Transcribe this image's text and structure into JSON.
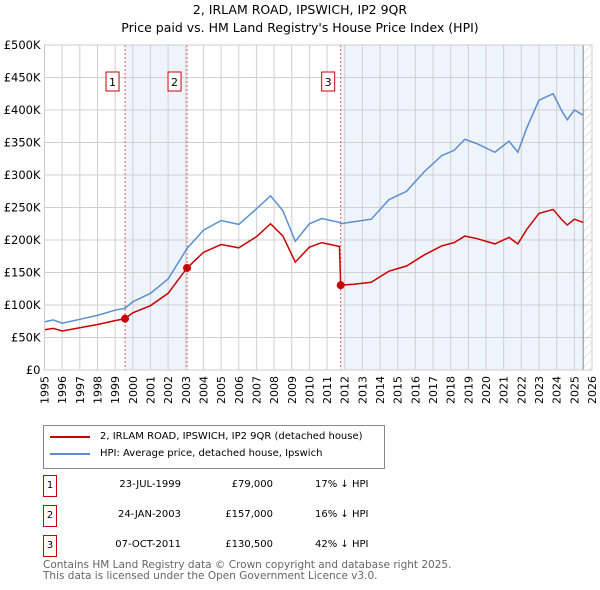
{
  "chart_data": {
    "type": "line",
    "title": "2, IRLAM ROAD, IPSWICH, IP2 9QR",
    "subtitle": "Price paid vs. HM Land Registry's House Price Index (HPI)",
    "xlim": [
      1995,
      2026
    ],
    "ylim": [
      0,
      500000
    ],
    "x_ticks": [
      "1995",
      "1996",
      "1997",
      "1998",
      "1999",
      "2000",
      "2001",
      "2002",
      "2003",
      "2004",
      "2005",
      "2006",
      "2007",
      "2008",
      "2009",
      "2010",
      "2011",
      "2012",
      "2013",
      "2014",
      "2015",
      "2016",
      "2017",
      "2018",
      "2019",
      "2020",
      "2021",
      "2022",
      "2023",
      "2024",
      "2025",
      "2026"
    ],
    "y_ticks": [
      {
        "v": 0,
        "label": "£0"
      },
      {
        "v": 50000,
        "label": "£50K"
      },
      {
        "v": 100000,
        "label": "£100K"
      },
      {
        "v": 150000,
        "label": "£150K"
      },
      {
        "v": 200000,
        "label": "£200K"
      },
      {
        "v": 250000,
        "label": "£250K"
      },
      {
        "v": 300000,
        "label": "£300K"
      },
      {
        "v": 350000,
        "label": "£350K"
      },
      {
        "v": 400000,
        "label": "£400K"
      },
      {
        "v": 450000,
        "label": "£450K"
      },
      {
        "v": 500000,
        "label": "£500K"
      }
    ],
    "grid": true,
    "series": [
      {
        "name": "2, IRLAM ROAD, IPSWICH, IP2 9QR (detached house)",
        "color": "#cc0000",
        "x": [
          1995,
          1995.5,
          1996,
          1997,
          1998,
          1999,
          1999.56,
          2000,
          2001,
          2002,
          2003.07,
          2003.5,
          2004,
          2005,
          2006,
          2007,
          2007.8,
          2008.5,
          2009.2,
          2010,
          2010.7,
          2011.7,
          2011.77,
          2012.5,
          2013.5,
          2014.5,
          2015.5,
          2016.5,
          2017.5,
          2018.2,
          2018.8,
          2019.5,
          2020.5,
          2021.3,
          2021.8,
          2022.3,
          2023,
          2023.8,
          2024.3,
          2024.6,
          2025,
          2025.5
        ],
        "y": [
          62000,
          64000,
          60000,
          65000,
          70000,
          76000,
          79000,
          88000,
          99000,
          118000,
          157000,
          168000,
          181000,
          193000,
          188000,
          205000,
          225000,
          206000,
          166000,
          189000,
          196000,
          190000,
          130500,
          132000,
          135000,
          152000,
          160000,
          177000,
          191000,
          196000,
          206000,
          202000,
          194000,
          204000,
          194000,
          216000,
          241000,
          247000,
          231000,
          223000,
          232000,
          227000
        ]
      },
      {
        "name": "HPI: Average price, detached house, Ipswich",
        "color": "#5b8fd1",
        "x": [
          1995,
          1995.5,
          1996,
          1997,
          1998,
          1999,
          1999.56,
          2000,
          2001,
          2002,
          2003.07,
          2003.5,
          2004,
          2005,
          2006,
          2007,
          2007.8,
          2008.5,
          2009.2,
          2010,
          2010.7,
          2011.7,
          2011.77,
          2012.5,
          2013.5,
          2014.5,
          2015.5,
          2016.5,
          2017.5,
          2018.2,
          2018.8,
          2019.5,
          2020.5,
          2021.3,
          2021.8,
          2022.3,
          2023,
          2023.8,
          2024.3,
          2024.6,
          2025,
          2025.5
        ],
        "y": [
          74000,
          77000,
          72000,
          78000,
          84000,
          92000,
          95000,
          105000,
          118000,
          140000,
          187000,
          200000,
          215000,
          230000,
          224000,
          248000,
          268000,
          245000,
          198000,
          225000,
          233000,
          227000,
          225000,
          228000,
          232000,
          262000,
          275000,
          305000,
          330000,
          338000,
          355000,
          348000,
          335000,
          352000,
          335000,
          372000,
          415000,
          425000,
          398000,
          385000,
          400000,
          392000
        ]
      }
    ],
    "sales": [
      {
        "label": "1",
        "x": 1999.56,
        "y": 79000,
        "date": "23-JUL-1999",
        "price": "£79,000",
        "hpi": "17% ↓ HPI"
      },
      {
        "label": "2",
        "x": 2003.07,
        "y": 157000,
        "date": "24-JAN-2003",
        "price": "£157,000",
        "hpi": "16% ↓ HPI"
      },
      {
        "label": "3",
        "x": 2011.77,
        "y": 130500,
        "date": "07-OCT-2011",
        "price": "£130,500",
        "hpi": "42% ↓ HPI"
      }
    ],
    "shaded": [
      [
        1999.56,
        2003.07
      ],
      [
        2011.77,
        2025.5
      ]
    ],
    "hatched_from": 2025.5,
    "legend_position": "below"
  },
  "footer": {
    "line1": "Contains HM Land Registry data © Crown copyright and database right 2025.",
    "line2": "This data is licensed under the Open Government Licence v3.0."
  }
}
